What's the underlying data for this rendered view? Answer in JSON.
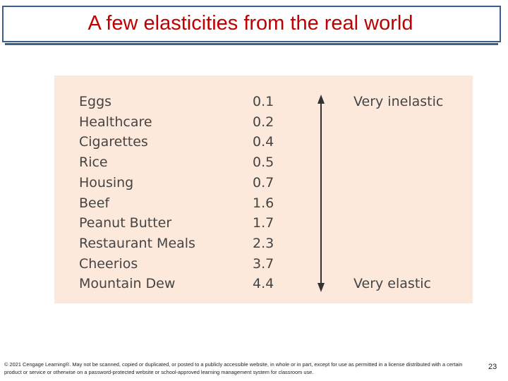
{
  "slide": {
    "title": "A few elasticities from the real world",
    "page_number": "23",
    "footer": "© 2021 Cengage Learning®. May not be scanned, copied or duplicated, or posted to a publicly accessible website, in whole or in part, except for use as permitted in a license distributed with a certain product or service or otherwise on a password-protected website or school-approved learning management system for classroom use."
  },
  "table": {
    "rows": [
      {
        "good": "Eggs",
        "value": "0.1"
      },
      {
        "good": "Healthcare",
        "value": "0.2"
      },
      {
        "good": "Cigarettes",
        "value": "0.4"
      },
      {
        "good": "Rice",
        "value": "0.5"
      },
      {
        "good": "Housing",
        "value": "0.7"
      },
      {
        "good": "Beef",
        "value": "1.6"
      },
      {
        "good": "Peanut Butter",
        "value": "1.7"
      },
      {
        "good": "Restaurant Meals",
        "value": "2.3"
      },
      {
        "good": "Cheerios",
        "value": "3.7"
      },
      {
        "good": "Mountain Dew",
        "value": "4.4"
      }
    ],
    "top_label": "Very inelastic",
    "bottom_label": "Very elastic"
  },
  "colors": {
    "title": "#c00000",
    "panel_background": "#fde9dc",
    "frame": "#3a5f8a"
  }
}
